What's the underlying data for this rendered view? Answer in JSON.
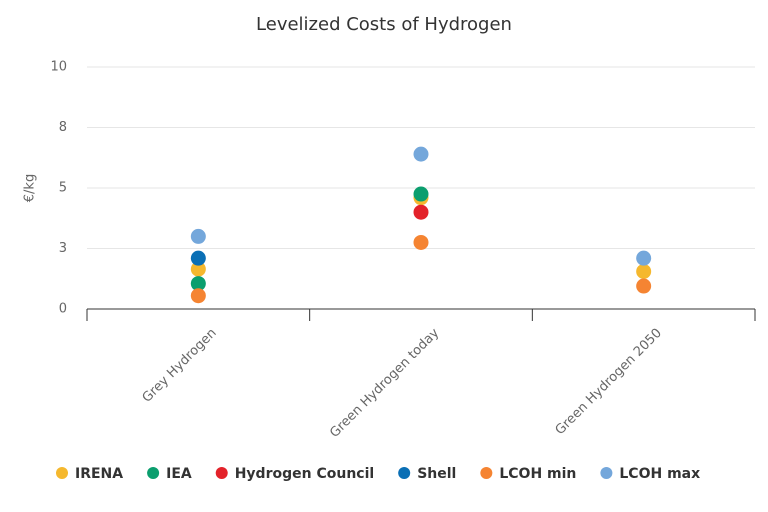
{
  "chart_data": {
    "type": "scatter",
    "title": "Levelized Costs of Hydrogen",
    "y_label": "€/kg",
    "categories": [
      "Grey Hydrogen",
      "Green Hydrogen today",
      "Green Hydrogen 2050"
    ],
    "ylim": [
      0,
      10
    ],
    "yticks": [
      0,
      {
        "value": 2.5,
        "label": "3"
      },
      5,
      {
        "value": 7.5,
        "label": "8"
      },
      10
    ],
    "grid": true,
    "legend": "bottom",
    "series": [
      {
        "name": "IRENA",
        "color": "#f5b82e",
        "values": [
          1.65,
          4.6,
          1.55
        ]
      },
      {
        "name": "IEA",
        "color": "#0b9e6e",
        "values": [
          1.05,
          4.75,
          null
        ]
      },
      {
        "name": "Hydrogen Council",
        "color": "#e3222a",
        "values": [
          null,
          4.0,
          null
        ]
      },
      {
        "name": "Shell",
        "color": "#0a6fb5",
        "values": [
          2.1,
          null,
          null
        ]
      },
      {
        "name": "LCOH min",
        "color": "#f58432",
        "values": [
          0.55,
          2.75,
          0.95
        ]
      },
      {
        "name": "LCOH max",
        "color": "#74a7db",
        "values": [
          3.0,
          6.4,
          2.1
        ]
      }
    ]
  }
}
